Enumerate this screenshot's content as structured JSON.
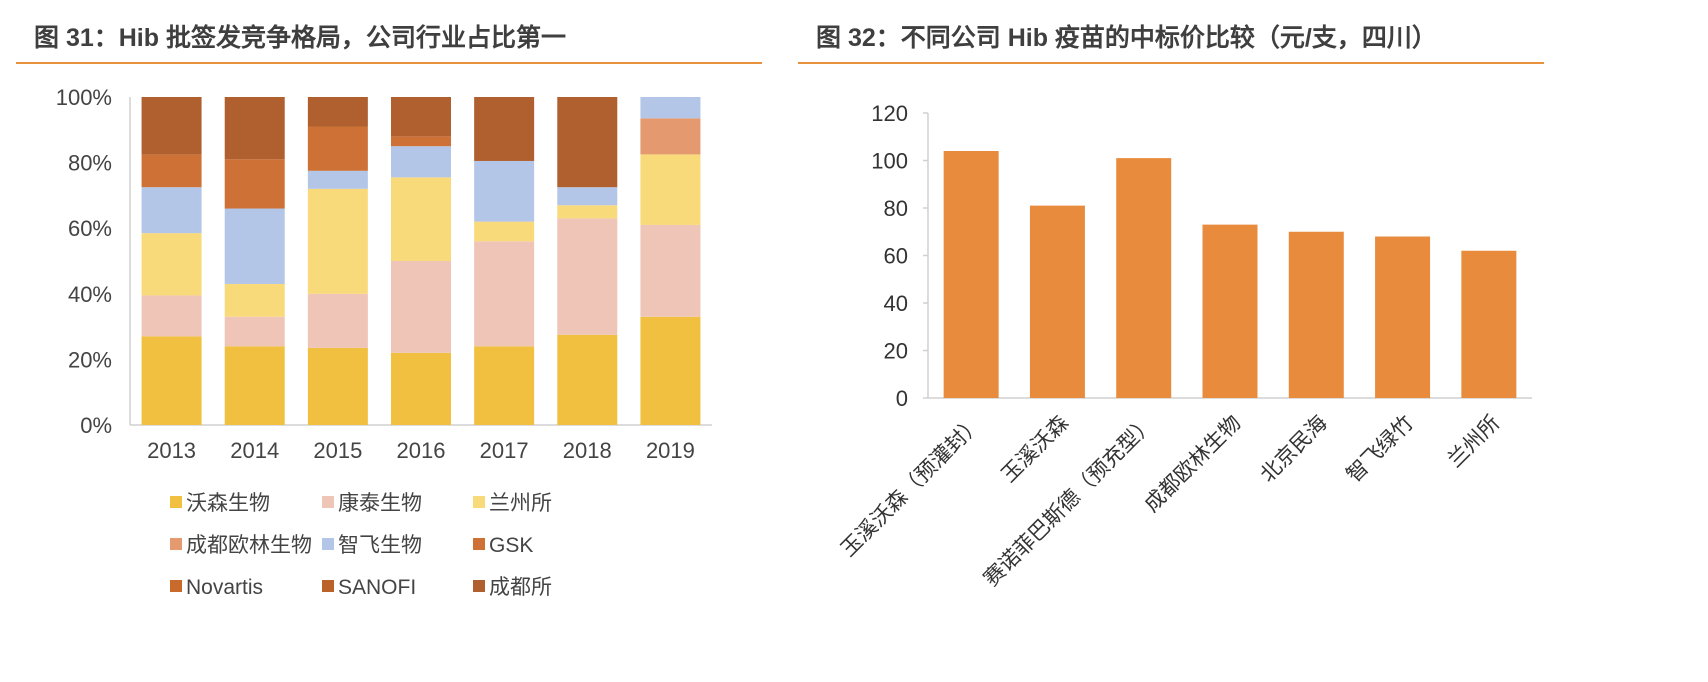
{
  "figure_left": {
    "title": "图 31：Hib 批签发竞争格局，公司行业占比第一"
  },
  "figure_right": {
    "title": "图 32：不同公司 Hib 疫苗的中标价比较（元/支，四川）"
  },
  "chart_data": [
    {
      "type": "bar",
      "stacked": true,
      "percent": true,
      "categories": [
        "2013",
        "2014",
        "2015",
        "2016",
        "2017",
        "2018",
        "2019"
      ],
      "series": [
        {
          "name": "沃森生物",
          "color": "#f2c040",
          "values": [
            27,
            24,
            23.5,
            22,
            24,
            27.5,
            33
          ]
        },
        {
          "name": "康泰生物",
          "color": "#eec5b6",
          "values": [
            12.5,
            9,
            16.5,
            28,
            32,
            35.5,
            28
          ]
        },
        {
          "name": "兰州所",
          "color": "#f8da7b",
          "values": [
            19,
            10,
            32,
            25.5,
            6,
            4,
            21.5
          ]
        },
        {
          "name": "成都欧林生物",
          "color": "#e4996f",
          "values": [
            0,
            0,
            0,
            0,
            0,
            0,
            11
          ]
        },
        {
          "name": "智飞生物",
          "color": "#b4c6e7",
          "values": [
            14,
            23,
            5.5,
            9.5,
            18.5,
            5.5,
            6.5
          ]
        },
        {
          "name": "GSK",
          "color": "#cd7137",
          "values": [
            10,
            15,
            13.5,
            3,
            0,
            0,
            0
          ]
        },
        {
          "name": "Novartis",
          "color": "#c76a2c",
          "values": [
            0,
            0,
            0,
            0,
            0,
            0,
            0
          ]
        },
        {
          "name": "SANOFI",
          "color": "#bb622a",
          "values": [
            0,
            0,
            0,
            0,
            0,
            0,
            0
          ]
        },
        {
          "name": "成都所",
          "color": "#b05f2e",
          "values": [
            17.5,
            19,
            9,
            12,
            19.5,
            27.5,
            0
          ]
        }
      ],
      "yticks": [
        "0%",
        "20%",
        "40%",
        "60%",
        "80%",
        "100%"
      ],
      "ylim": [
        0,
        100
      ],
      "legend_position": "bottom"
    },
    {
      "type": "bar",
      "categories": [
        "玉溪沃森（预灌封）",
        "玉溪沃森",
        "赛诺菲巴斯德（预充型）",
        "成都欧林生物",
        "北京民海",
        "智飞绿竹",
        "兰州所"
      ],
      "values": [
        104,
        81,
        101,
        73,
        70,
        68,
        62
      ],
      "color": "#e88b3c",
      "ylim": [
        0,
        120
      ],
      "yticks": [
        "0",
        "20",
        "40",
        "60",
        "80",
        "100",
        "120"
      ]
    }
  ]
}
